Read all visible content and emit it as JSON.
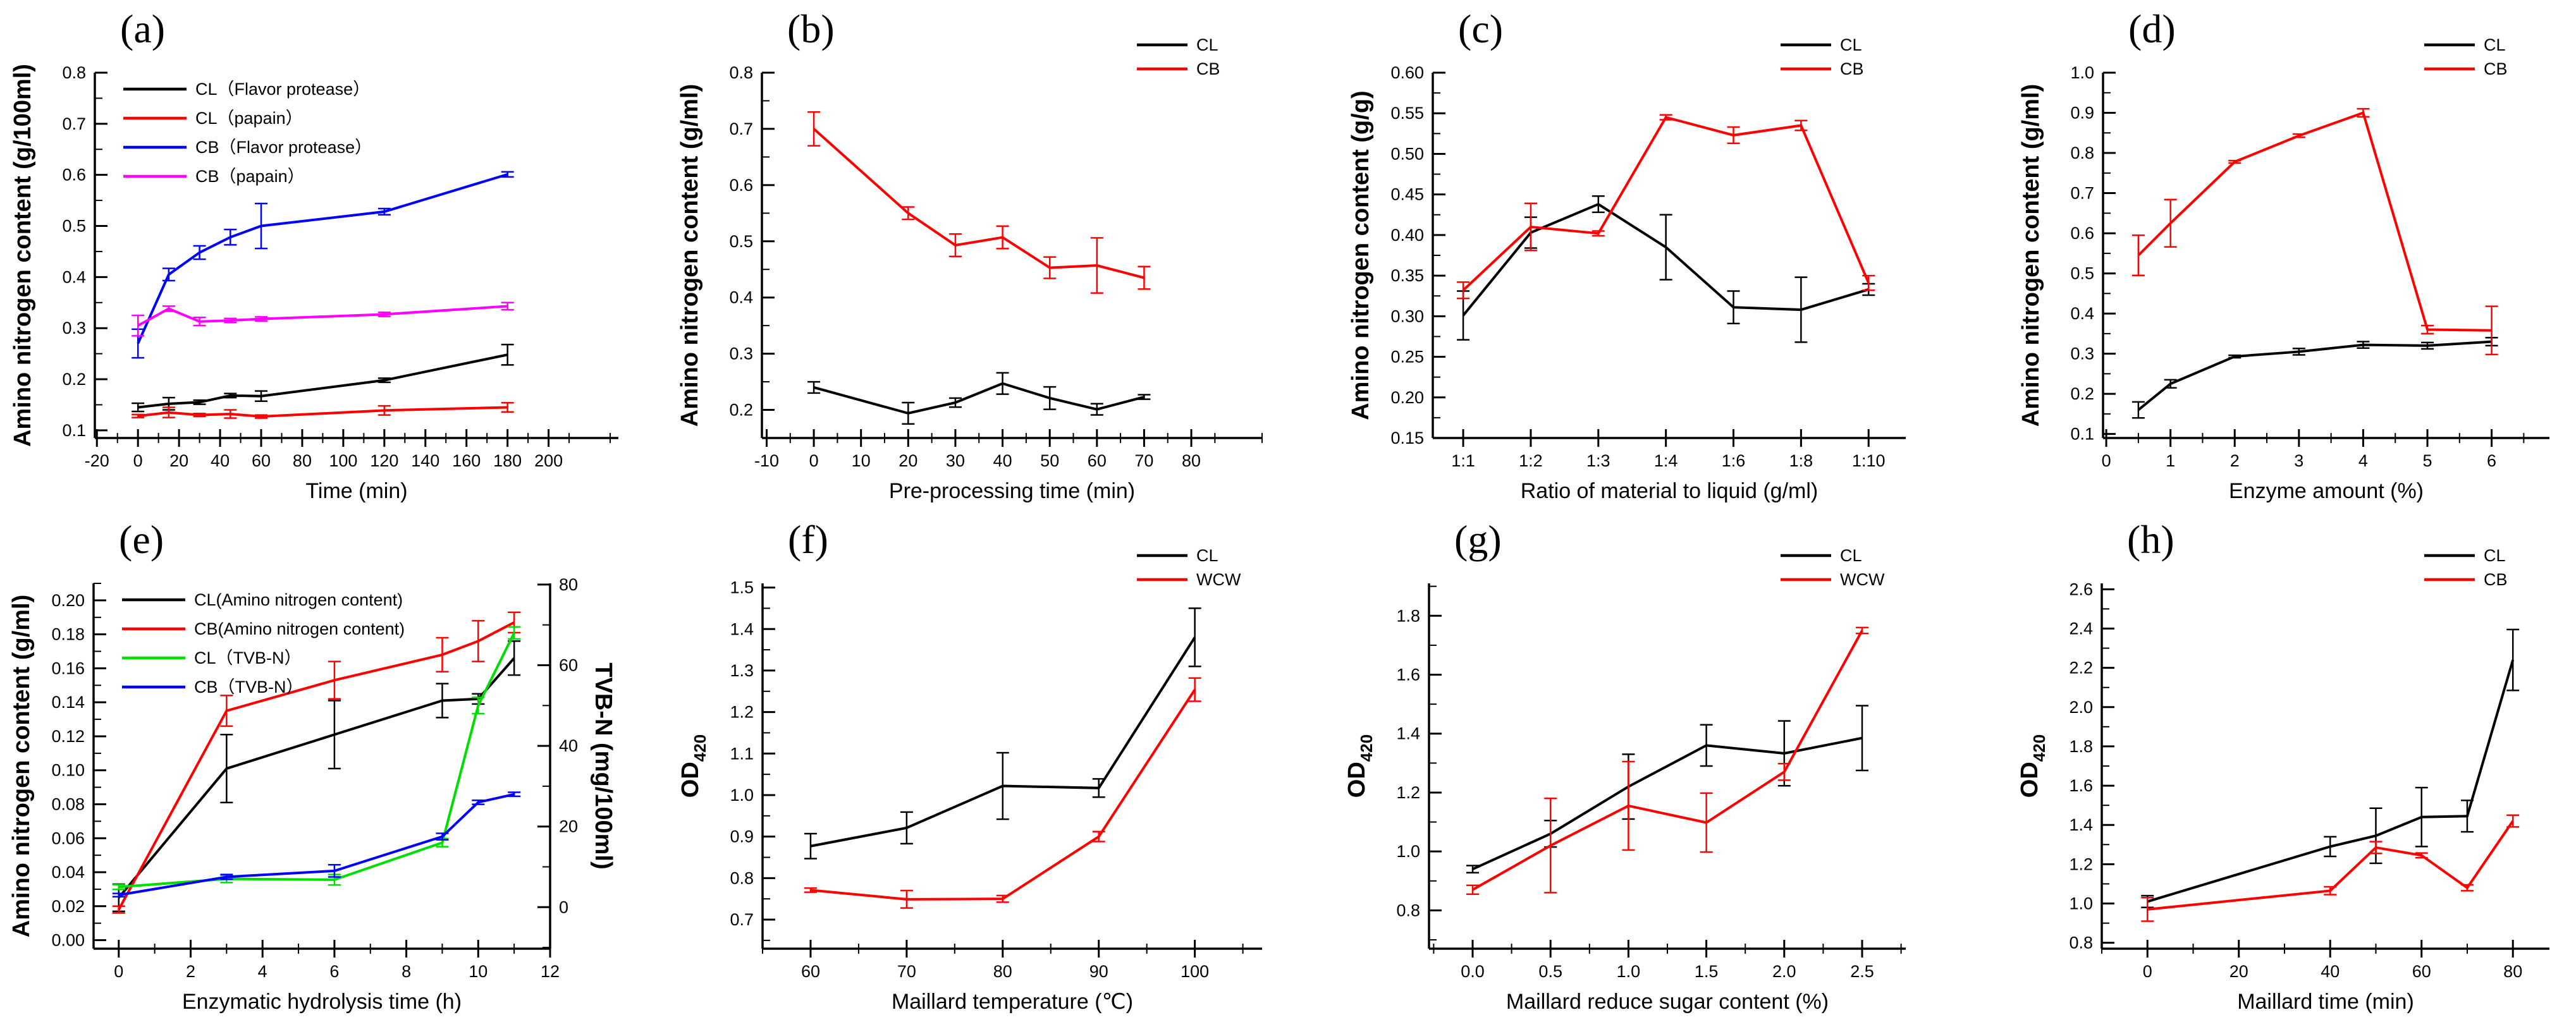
{
  "figure": {
    "description": "Eight-panel scientific line-chart figure with error bars",
    "panels": [
      "(a)",
      "(b)",
      "(c)",
      "(d)",
      "(e)",
      "(f)",
      "(g)",
      "(h)"
    ],
    "colors": {
      "black": "#000000",
      "red": "#FF0000",
      "blue": "#0000FF",
      "magenta": "#FF00FF",
      "green": "#00DD00"
    }
  },
  "chart_data": [
    {
      "panel_label": "(a)",
      "type": "line",
      "xlabel": "Time (min)",
      "ylabel": "Amino nitrogen content (g/100ml)",
      "x": [
        0,
        15,
        30,
        45,
        60,
        120,
        180
      ],
      "xlim": [
        -21,
        234
      ],
      "ylim": [
        0.085,
        0.8
      ],
      "xticks": [
        -20,
        0,
        20,
        40,
        60,
        80,
        100,
        120,
        140,
        160,
        180,
        200
      ],
      "xtick_labels": [
        "-20",
        "0",
        "20",
        "40",
        "60",
        "80",
        "100",
        "120",
        "140",
        "160",
        "180",
        "200"
      ],
      "yticks": [
        0.1,
        0.2,
        0.3,
        0.4,
        0.5,
        0.6,
        0.7,
        0.8
      ],
      "ytick_labels": [
        "0.1",
        "0.2",
        "0.3",
        "0.4",
        "0.5",
        "0.6",
        "0.7",
        "0.8"
      ],
      "legend_pos": "inside-left",
      "margin_left": 150,
      "series": [
        {
          "name": "CL（Flavor protease）",
          "color": "#000000",
          "values": [
            0.145,
            0.152,
            0.155,
            0.168,
            0.167,
            0.198,
            0.248
          ],
          "errors": [
            0.008,
            0.012,
            0.004,
            0.004,
            0.01,
            0.004,
            0.02
          ]
        },
        {
          "name": "CL（papain）",
          "color": "#FF0000",
          "values": [
            0.128,
            0.135,
            0.13,
            0.132,
            0.127,
            0.139,
            0.145
          ],
          "errors": [
            0.003,
            0.01,
            0.003,
            0.008,
            0.003,
            0.009,
            0.009
          ]
        },
        {
          "name": "CB（Flavor protease）",
          "color": "#0000FF",
          "values": [
            0.27,
            0.405,
            0.448,
            0.478,
            0.5,
            0.528,
            0.601
          ],
          "errors": [
            0.028,
            0.012,
            0.013,
            0.015,
            0.044,
            0.006,
            0.005
          ]
        },
        {
          "name": "CB（papain）",
          "color": "#FF00FF",
          "values": [
            0.305,
            0.338,
            0.313,
            0.315,
            0.318,
            0.327,
            0.343
          ],
          "errors": [
            0.02,
            0.005,
            0.008,
            0.004,
            0.004,
            0.004,
            0.007
          ]
        }
      ]
    },
    {
      "panel_label": "(b)",
      "type": "line",
      "xlabel": "Pre-processing time (min)",
      "ylabel": "Amino nitrogen content (g/ml)",
      "x": [
        0,
        20,
        30,
        40,
        50,
        60,
        70
      ],
      "xlim": [
        -11,
        95
      ],
      "ylim": [
        0.15,
        0.8
      ],
      "xticks": [
        -10,
        0,
        10,
        20,
        30,
        40,
        50,
        60,
        70,
        80
      ],
      "xtick_labels": [
        "-10",
        "0",
        "10",
        "20",
        "30",
        "40",
        "50",
        "60",
        "70",
        "80"
      ],
      "yticks": [
        0.2,
        0.3,
        0.4,
        0.5,
        0.6,
        0.7,
        0.8
      ],
      "ytick_labels": [
        "0.2",
        "0.3",
        "0.4",
        "0.5",
        "0.6",
        "0.7",
        "0.8"
      ],
      "legend_pos": "top-right",
      "margin_left": 187,
      "series": [
        {
          "name": "CL",
          "color": "#000000",
          "values": [
            0.24,
            0.194,
            0.213,
            0.247,
            0.221,
            0.201,
            0.223
          ],
          "errors": [
            0.01,
            0.019,
            0.008,
            0.019,
            0.02,
            0.01,
            0.004
          ]
        },
        {
          "name": "CB",
          "color": "#FF0000",
          "values": [
            0.7,
            0.55,
            0.493,
            0.507,
            0.453,
            0.457,
            0.435
          ],
          "errors": [
            0.03,
            0.011,
            0.02,
            0.02,
            0.019,
            0.049,
            0.02
          ]
        }
      ]
    },
    {
      "panel_label": "(c)",
      "type": "line",
      "xlabel": "Ratio of material to liquid (g/ml)",
      "ylabel": "Amino nitrogen content (g/g)",
      "x": [
        0,
        1,
        2,
        3,
        4,
        5,
        6
      ],
      "x_minor": false,
      "xlim": [
        -0.45,
        6.55
      ],
      "ylim": [
        0.15,
        0.6
      ],
      "xticks": [
        0,
        1,
        2,
        3,
        4,
        5,
        6
      ],
      "xtick_labels": [
        "1:1",
        "1:2",
        "1:3",
        "1:4",
        "1:6",
        "1:8",
        "1:10"
      ],
      "yticks": [
        0.15,
        0.2,
        0.25,
        0.3,
        0.35,
        0.4,
        0.45,
        0.5,
        0.55,
        0.6
      ],
      "ytick_labels": [
        "0.15",
        "0.20",
        "0.25",
        "0.30",
        "0.35",
        "0.40",
        "0.45",
        "0.50",
        "0.55",
        "0.60"
      ],
      "legend_pos": "top-right",
      "margin_left": 230,
      "series": [
        {
          "name": "CL",
          "color": "#000000",
          "values": [
            0.301,
            0.403,
            0.438,
            0.385,
            0.311,
            0.308,
            0.333
          ],
          "errors": [
            0.03,
            0.019,
            0.01,
            0.04,
            0.02,
            0.04,
            0.007
          ]
        },
        {
          "name": "CB",
          "color": "#FF0000",
          "values": [
            0.332,
            0.41,
            0.402,
            0.545,
            0.523,
            0.535,
            0.341
          ],
          "errors": [
            0.01,
            0.029,
            0.003,
            0.003,
            0.01,
            0.006,
            0.009
          ]
        }
      ]
    },
    {
      "panel_label": "(d)",
      "type": "line",
      "xlabel": "Enzyme amount (%)",
      "ylabel": "Amino nitrogen content (g/ml)",
      "x": [
        0.5,
        1,
        2,
        3,
        4,
        5,
        6
      ],
      "xlim": [
        -0.05,
        6.9
      ],
      "ylim": [
        0.09,
        1.0
      ],
      "xticks": [
        0,
        1,
        2,
        3,
        4,
        5,
        6
      ],
      "xtick_labels": [
        "0",
        "1",
        "2",
        "3",
        "4",
        "5",
        "6"
      ],
      "yticks": [
        0.1,
        0.2,
        0.3,
        0.4,
        0.5,
        0.6,
        0.7,
        0.8,
        0.9,
        1.0
      ],
      "ytick_labels": [
        "0.1",
        "0.2",
        "0.3",
        "0.4",
        "0.5",
        "0.6",
        "0.7",
        "0.8",
        "0.9",
        "1.0"
      ],
      "legend_pos": "top-right",
      "margin_left": 272,
      "series": [
        {
          "name": "CL",
          "color": "#000000",
          "values": [
            0.16,
            0.225,
            0.293,
            0.305,
            0.322,
            0.32,
            0.33
          ],
          "errors": [
            0.02,
            0.01,
            0.003,
            0.008,
            0.008,
            0.008,
            0.01
          ]
        },
        {
          "name": "CB",
          "color": "#FF0000",
          "values": [
            0.545,
            0.625,
            0.778,
            0.843,
            0.9,
            0.36,
            0.358
          ],
          "errors": [
            0.05,
            0.059,
            0.003,
            0.004,
            0.01,
            0.01,
            0.06
          ]
        }
      ]
    },
    {
      "panel_label": "(e)",
      "type": "line",
      "xlabel": "Enzymatic hydrolysis time (h)",
      "ylabel": "Amino nitrogen content (g/ml)",
      "ylabel_right": "TVB-N (mg/100ml)",
      "x": [
        0,
        3,
        6,
        9,
        10,
        11
      ],
      "xlim": [
        -0.7,
        12.0
      ],
      "ylim": [
        -0.005,
        0.21
      ],
      "ylim_right": [
        -10.3,
        80.3
      ],
      "xticks": [
        0,
        2,
        4,
        6,
        8,
        10,
        12
      ],
      "xtick_labels": [
        "0",
        "2",
        "4",
        "6",
        "8",
        "10",
        "12"
      ],
      "yticks": [
        0.0,
        0.02,
        0.04,
        0.06,
        0.08,
        0.1,
        0.12,
        0.14,
        0.16,
        0.18,
        0.2
      ],
      "ytick_labels": [
        "0.00",
        "0.02",
        "0.04",
        "0.06",
        "0.08",
        "0.10",
        "0.12",
        "0.14",
        "0.16",
        "0.18",
        "0.20"
      ],
      "yticks_right": [
        0,
        20,
        40,
        60,
        80
      ],
      "ytick_labels_right": [
        "0",
        "20",
        "40",
        "60",
        "80"
      ],
      "legend_pos": "inside-left",
      "margin_left": 148,
      "margin_right": 148,
      "series": [
        {
          "name": "CL(Amino nitrogen content)",
          "color": "#000000",
          "values": [
            0.025,
            0.101,
            0.121,
            0.141,
            0.142,
            0.166
          ],
          "errors": [
            0.008,
            0.02,
            0.02,
            0.01,
            0.003,
            0.01
          ]
        },
        {
          "name": "CB(Amino nitrogen content)",
          "color": "#FF0000",
          "values": [
            0.018,
            0.135,
            0.153,
            0.168,
            0.176,
            0.187
          ],
          "errors": [
            0.002,
            0.009,
            0.011,
            0.01,
            0.012,
            0.006
          ]
        },
        {
          "name": "CL（TVB-N）",
          "color": "#00DD00",
          "axis": "right",
          "values": [
            5,
            7,
            6.8,
            16,
            50,
            68
          ],
          "errors": [
            0.6,
            0.9,
            1.3,
            1.0,
            2.0,
            1.5
          ]
        },
        {
          "name": "CB（TVB-N）",
          "color": "#0000FF",
          "axis": "right",
          "values": [
            3,
            7.5,
            9,
            17.5,
            26,
            28
          ],
          "errors": [
            0.4,
            0.6,
            1.5,
            0.8,
            0.5,
            0.5
          ]
        }
      ]
    },
    {
      "panel_label": "(f)",
      "type": "line",
      "xlabel": "Maillard temperature (℃)",
      "ylabel": "OD",
      "ylabel_sub": "420",
      "x": [
        60,
        70,
        80,
        90,
        100
      ],
      "xlim": [
        55,
        107
      ],
      "ylim": [
        0.63,
        1.51
      ],
      "xticks": [
        60,
        70,
        80,
        90,
        100
      ],
      "xtick_labels": [
        "60",
        "70",
        "80",
        "90",
        "100"
      ],
      "yticks": [
        0.7,
        0.8,
        0.9,
        1.0,
        1.1,
        1.2,
        1.3,
        1.4,
        1.5
      ],
      "ytick_labels": [
        "0.7",
        "0.8",
        "0.9",
        "1.0",
        "1.1",
        "1.2",
        "1.3",
        "1.4",
        "1.5"
      ],
      "legend_pos": "top-right",
      "margin_left": 188,
      "series": [
        {
          "name": "CL",
          "color": "#000000",
          "values": [
            0.877,
            0.921,
            1.022,
            1.017,
            1.38
          ],
          "errors": [
            0.03,
            0.038,
            0.08,
            0.022,
            0.07
          ]
        },
        {
          "name": "WCW",
          "color": "#FF0000",
          "values": [
            0.771,
            0.749,
            0.75,
            0.9,
            1.254
          ],
          "errors": [
            0.005,
            0.021,
            0.008,
            0.012,
            0.028
          ]
        }
      ]
    },
    {
      "panel_label": "(g)",
      "type": "line",
      "xlabel": "Maillard reduce sugar content (%)",
      "ylabel": "OD",
      "ylabel_sub": "420",
      "x": [
        0.0,
        0.5,
        1.0,
        1.5,
        2.0,
        2.5
      ],
      "xlim": [
        -0.28,
        2.78
      ],
      "ylim": [
        0.67,
        1.91
      ],
      "xticks": [
        0.0,
        0.5,
        1.0,
        1.5,
        2.0,
        2.5
      ],
      "xtick_labels": [
        "0.0",
        "0.5",
        "1.0",
        "1.5",
        "2.0",
        "2.5"
      ],
      "yticks": [
        0.8,
        1.0,
        1.2,
        1.4,
        1.6,
        1.8
      ],
      "ytick_labels": [
        "0.8",
        "1.0",
        "1.2",
        "1.4",
        "1.6",
        "1.8"
      ],
      "legend_pos": "top-right",
      "margin_left": 224,
      "series": [
        {
          "name": "CL",
          "color": "#000000",
          "values": [
            0.94,
            1.06,
            1.22,
            1.36,
            1.333,
            1.385
          ],
          "errors": [
            0.012,
            0.045,
            0.11,
            0.07,
            0.11,
            0.11
          ]
        },
        {
          "name": "WCW",
          "color": "#FF0000",
          "values": [
            0.87,
            1.02,
            1.155,
            1.098,
            1.27,
            1.75
          ],
          "errors": [
            0.015,
            0.16,
            0.15,
            0.1,
            0.028,
            0.01
          ]
        }
      ]
    },
    {
      "panel_label": "(h)",
      "type": "line",
      "xlabel": "Maillard time (min)",
      "ylabel": "OD",
      "ylabel_sub": "420",
      "x": [
        0,
        40,
        50,
        60,
        70,
        80
      ],
      "xlim": [
        -10,
        88
      ],
      "ylim": [
        0.77,
        2.63
      ],
      "xticks": [
        0,
        20,
        40,
        60,
        80
      ],
      "xtick_labels": [
        "0",
        "20",
        "40",
        "60",
        "80"
      ],
      "yticks": [
        0.8,
        1.0,
        1.2,
        1.4,
        1.6,
        1.8,
        2.0,
        2.2,
        2.4,
        2.6
      ],
      "ytick_labels": [
        "0.8",
        "1.0",
        "1.2",
        "1.4",
        "1.6",
        "1.8",
        "2.0",
        "2.2",
        "2.4",
        "2.6"
      ],
      "legend_pos": "top-right",
      "margin_left": 270,
      "series": [
        {
          "name": "CL",
          "color": "#000000",
          "values": [
            1.01,
            1.29,
            1.345,
            1.44,
            1.445,
            2.24
          ],
          "errors": [
            0.03,
            0.05,
            0.14,
            0.15,
            0.08,
            0.155
          ]
        },
        {
          "name": "CB",
          "color": "#FF0000",
          "values": [
            0.97,
            1.065,
            1.285,
            1.245,
            1.08,
            1.42
          ],
          "errors": [
            0.06,
            0.02,
            0.03,
            0.012,
            0.015,
            0.03
          ]
        }
      ]
    }
  ]
}
